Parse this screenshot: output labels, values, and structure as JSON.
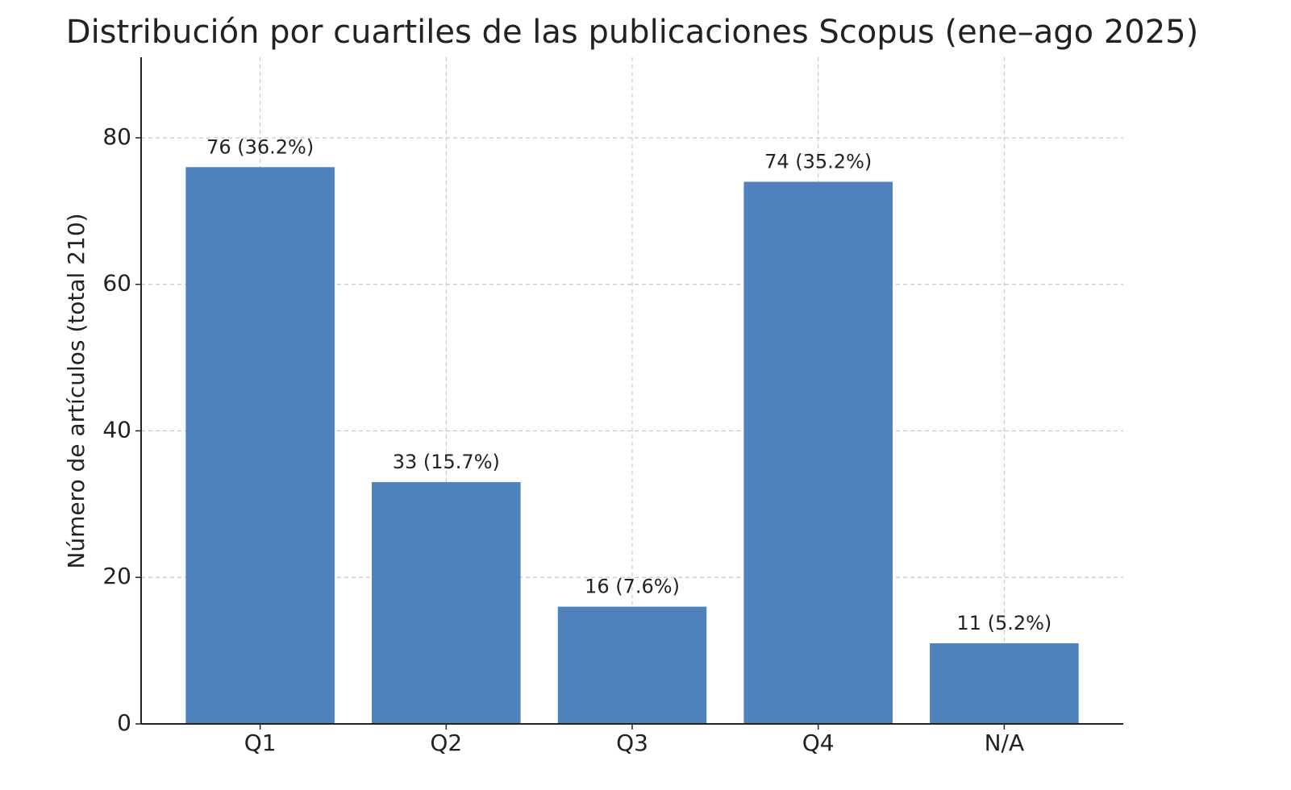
{
  "chart_data": {
    "type": "bar",
    "title": "Distribución por cuartiles de las publicaciones Scopus (ene–ago 2025)",
    "y_label": "Número de artículos (total 210)",
    "categories": [
      "Q1",
      "Q2",
      "Q3",
      "Q4",
      "N/A"
    ],
    "values": [
      76,
      33,
      16,
      74,
      11
    ],
    "value_labels": [
      "76 (36.2%)",
      "33 (15.7%)",
      "16 (7.6%)",
      "74 (35.2%)",
      "11 (5.2%)"
    ],
    "color": "#4f81bd",
    "ylim": [
      0,
      91
    ],
    "yticks": [
      0,
      20,
      40,
      60,
      80
    ],
    "grid": true
  }
}
